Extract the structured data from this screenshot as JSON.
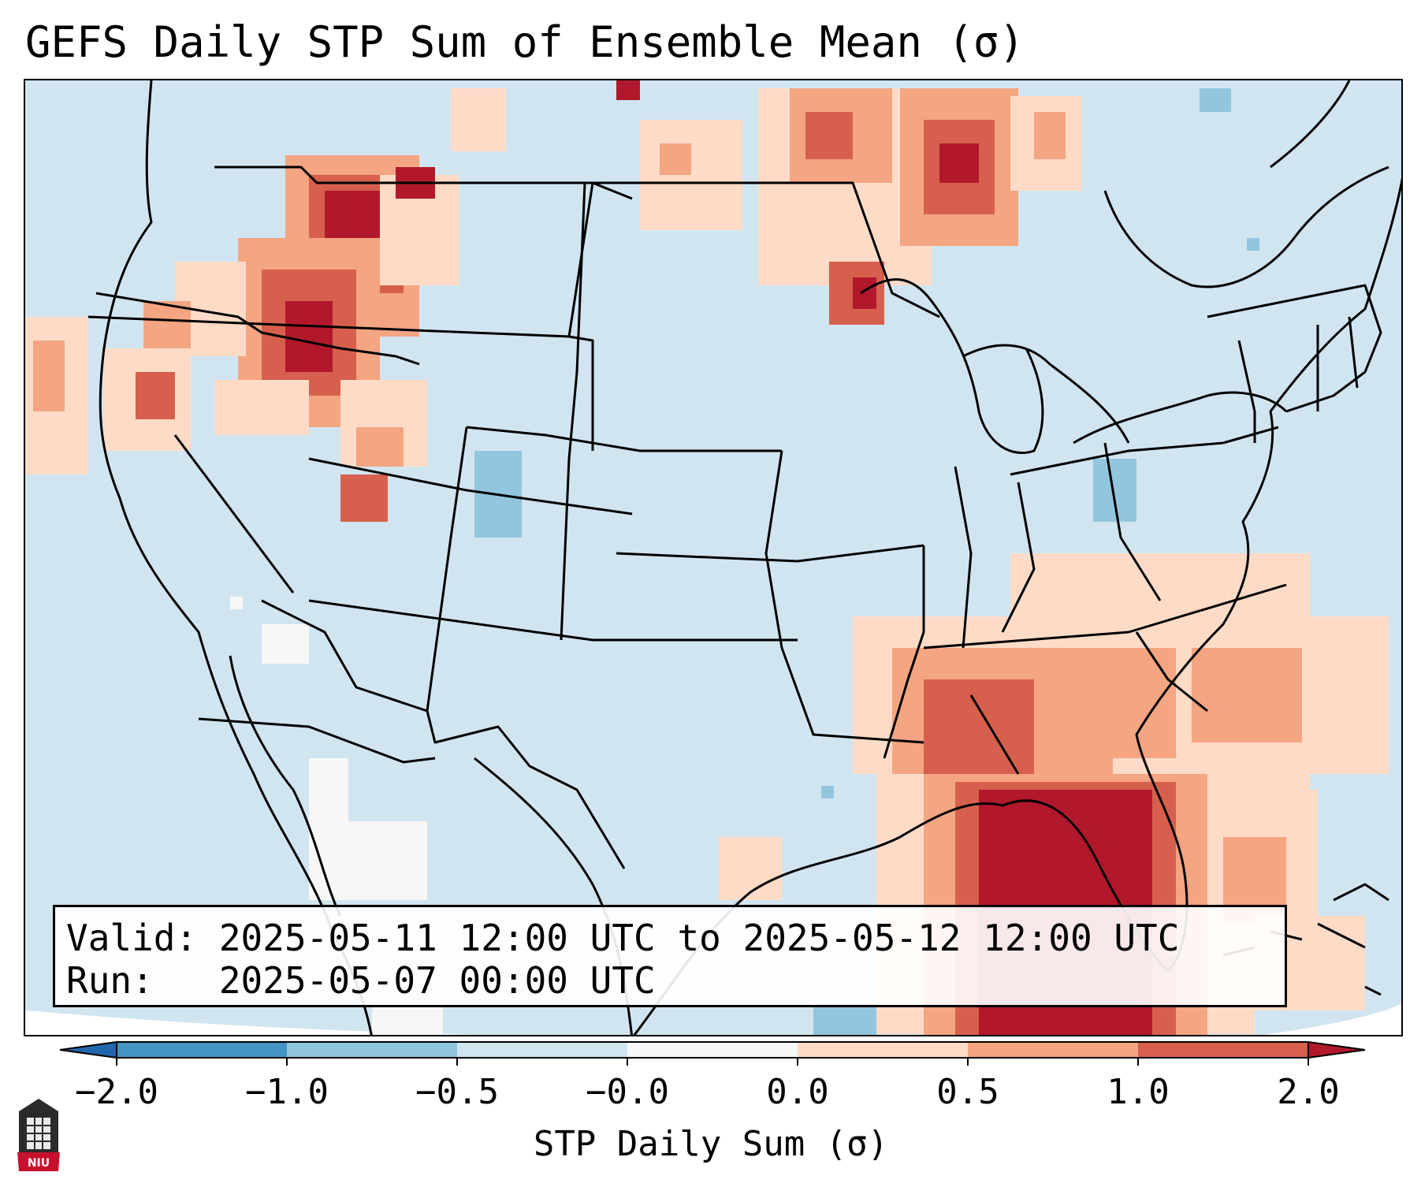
{
  "title": "GEFS Daily STP Sum of Ensemble Mean (σ)",
  "info": {
    "valid_line": "Valid: 2025-05-11 12:00 UTC to 2025-05-12 12:00 UTC",
    "run_line": "Run:   2025-05-07 00:00 UTC"
  },
  "colorbar": {
    "label": "STP Daily Sum (σ)",
    "ticks": [
      "−2.0",
      "−1.0",
      "−0.5",
      "−0.0",
      "0.0",
      "0.5",
      "1.0",
      "2.0"
    ],
    "colors": {
      "under": "#2166ac",
      "b1": "#4393c3",
      "b2": "#92c5de",
      "b3": "#d1e5f0",
      "b4": "#f7f7f7",
      "b5": "#fddbc7",
      "b6": "#f4a582",
      "b7": "#d6604d",
      "over": "#b2182b"
    }
  },
  "logo": {
    "text": "NIU",
    "color": "#c8102e"
  }
}
